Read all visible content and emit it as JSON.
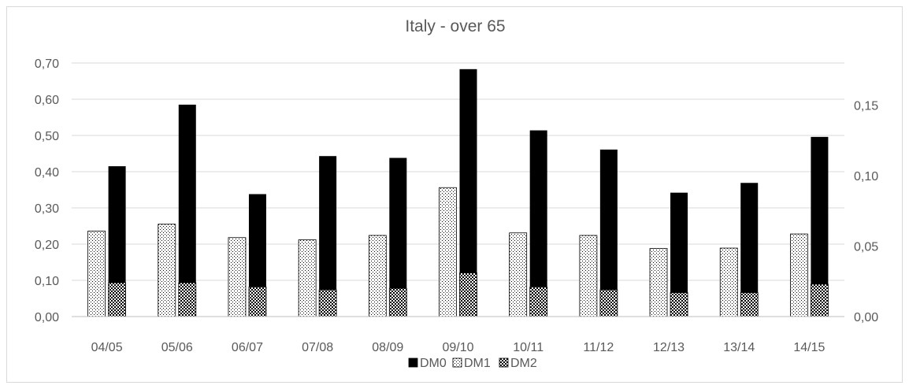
{
  "chart_data": {
    "type": "bar",
    "title": "Italy - over 65",
    "categories": [
      "04/05",
      "05/06",
      "06/07",
      "07/08",
      "08/09",
      "09/10",
      "10/11",
      "11/12",
      "12/13",
      "13/14",
      "14/15"
    ],
    "series": [
      {
        "name": "DM0",
        "axis": "left",
        "color": "#000000",
        "pattern": "solid",
        "values": [
          0.415,
          0.585,
          0.338,
          0.443,
          0.438,
          0.683,
          0.514,
          0.461,
          0.342,
          0.369,
          0.496
        ]
      },
      {
        "name": "DM1",
        "axis": "left",
        "color": "#000000",
        "pattern": "dotted",
        "values": [
          0.236,
          0.255,
          0.218,
          0.212,
          0.224,
          0.356,
          0.231,
          0.224,
          0.188,
          0.189,
          0.228
        ]
      },
      {
        "name": "DM2",
        "axis": "right",
        "color": "#000000",
        "pattern": "checker",
        "values": [
          0.024,
          0.024,
          0.021,
          0.019,
          0.02,
          0.031,
          0.021,
          0.019,
          0.017,
          0.017,
          0.023
        ]
      }
    ],
    "y_left": {
      "min": 0,
      "max": 0.7,
      "ticks": [
        "0,00",
        "0,10",
        "0,20",
        "0,30",
        "0,40",
        "0,50",
        "0,60",
        "0,70"
      ]
    },
    "y_right": {
      "min": 0,
      "max": 0.18,
      "ticks": [
        "0,00",
        "0,05",
        "0,10",
        "0,15"
      ]
    },
    "grid": true,
    "legend": "bottom"
  }
}
